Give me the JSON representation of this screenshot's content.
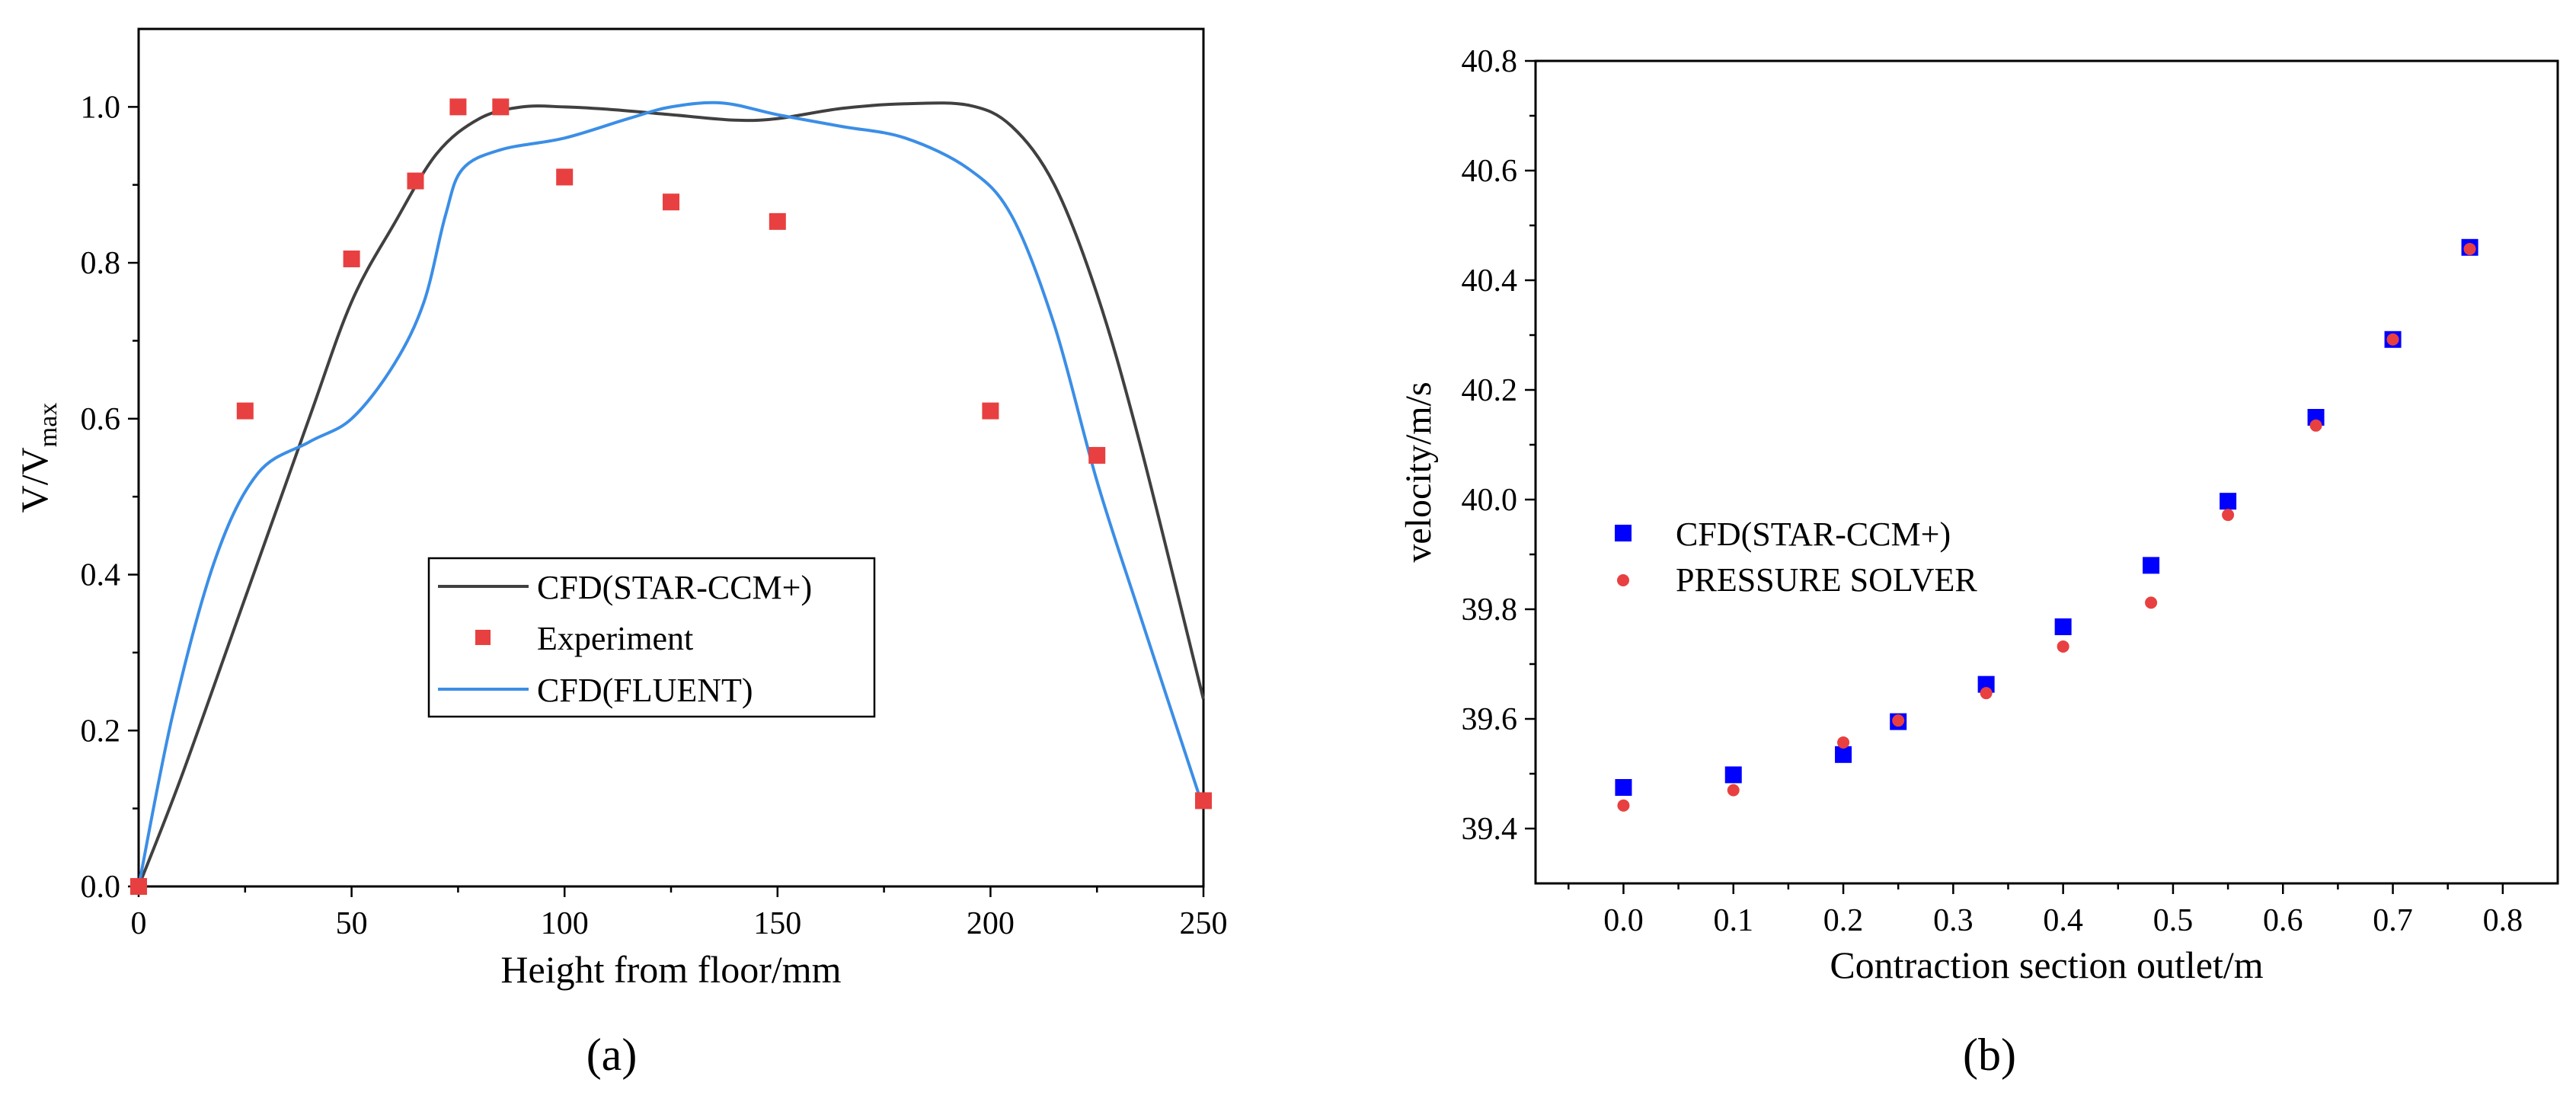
{
  "chart_data": [
    {
      "panel_label": "(a)",
      "type": "line",
      "title": "",
      "xlabel": "Height from floor/mm",
      "ylabel_main": "V/V",
      "ylabel_sub": "max",
      "xlim": [
        0,
        250
      ],
      "ylim": [
        0,
        1.1
      ],
      "xticks": [
        0,
        50,
        100,
        150,
        200,
        250
      ],
      "yticks": [
        0.0,
        0.2,
        0.4,
        0.6,
        0.8,
        1.0
      ],
      "ytick_labels": [
        "0.0",
        "0.2",
        "0.4",
        "0.6",
        "0.8",
        "1.0"
      ],
      "legend_position": "center",
      "series": [
        {
          "name": "CFD(STAR-CCM+)",
          "kind": "line",
          "color": "#404040",
          "x": [
            0,
            10,
            25,
            40,
            50,
            60,
            70,
            80,
            90,
            100,
            110,
            125,
            140,
            150,
            165,
            180,
            195,
            205,
            215,
            225,
            235,
            250
          ],
          "y": [
            0.0,
            0.14,
            0.37,
            0.6,
            0.75,
            0.85,
            0.94,
            0.985,
            1.0,
            1.0,
            0.997,
            0.99,
            0.983,
            0.985,
            0.998,
            1.004,
            1.002,
            0.975,
            0.9,
            0.76,
            0.57,
            0.24
          ]
        },
        {
          "name": "Experiment",
          "kind": "scatter",
          "color": "#e84040",
          "x": [
            0,
            25,
            50,
            65,
            75,
            85,
            100,
            125,
            150,
            200,
            225,
            250
          ],
          "y": [
            0.0,
            0.61,
            0.805,
            0.905,
            1.0,
            1.0,
            0.91,
            0.878,
            0.853,
            0.61,
            0.553,
            0.11
          ]
        },
        {
          "name": "CFD(FLUENT)",
          "kind": "line",
          "color": "#3b8ee6",
          "x": [
            0,
            8,
            18,
            28,
            40,
            50,
            60,
            67,
            72,
            76,
            85,
            100,
            115,
            125,
            137,
            150,
            165,
            180,
            195,
            205,
            215,
            225,
            235,
            250
          ],
          "y": [
            0.0,
            0.22,
            0.42,
            0.53,
            0.57,
            0.6,
            0.67,
            0.75,
            0.86,
            0.92,
            0.945,
            0.96,
            0.985,
            1.0,
            1.005,
            0.99,
            0.975,
            0.96,
            0.92,
            0.86,
            0.72,
            0.52,
            0.35,
            0.1
          ]
        }
      ]
    },
    {
      "panel_label": "(b)",
      "type": "scatter",
      "title": "",
      "xlabel": "Contraction section outlet/m",
      "ylabel": "velocity/m/s",
      "xlim": [
        -0.08,
        0.85
      ],
      "ylim": [
        39.3,
        40.8
      ],
      "xticks": [
        0.0,
        0.1,
        0.2,
        0.3,
        0.4,
        0.5,
        0.6,
        0.7,
        0.8
      ],
      "xtick_labels": [
        "0.0",
        "0.1",
        "0.2",
        "0.3",
        "0.4",
        "0.5",
        "0.6",
        "0.7",
        "0.8"
      ],
      "yticks": [
        39.4,
        39.6,
        39.8,
        40.0,
        40.2,
        40.4,
        40.6,
        40.8
      ],
      "ytick_labels": [
        "39.4",
        "39.6",
        "39.8",
        "40.0",
        "40.2",
        "40.4",
        "40.6",
        "40.8"
      ],
      "legend_position": "center-left",
      "series": [
        {
          "name": "CFD(STAR-CCM+)",
          "kind": "square",
          "color": "#0000ff",
          "x": [
            0.0,
            0.1,
            0.2,
            0.25,
            0.33,
            0.4,
            0.48,
            0.55,
            0.63,
            0.7,
            0.77
          ],
          "y": [
            39.475,
            39.498,
            39.535,
            39.595,
            39.663,
            39.768,
            39.88,
            39.997,
            40.15,
            40.292,
            40.46
          ]
        },
        {
          "name": "PRESSURE SOLVER",
          "kind": "circle",
          "color": "#e84040",
          "x": [
            0.0,
            0.1,
            0.2,
            0.25,
            0.33,
            0.4,
            0.48,
            0.55,
            0.63,
            0.7,
            0.77
          ],
          "y": [
            39.442,
            39.47,
            39.557,
            39.597,
            39.647,
            39.732,
            39.812,
            39.972,
            40.135,
            40.292,
            40.457
          ]
        }
      ]
    }
  ]
}
